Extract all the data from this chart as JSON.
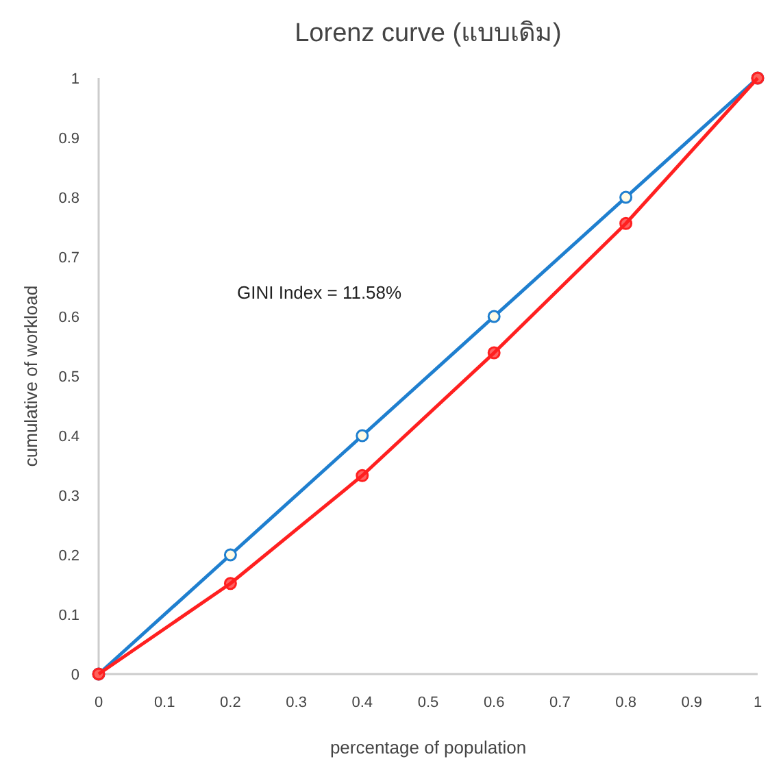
{
  "chart_data": {
    "type": "line",
    "title": "Lorenz curve (แบบเดิม)",
    "xlabel": "percentage of population",
    "ylabel": "cumulative of workload",
    "x": [
      0,
      0.2,
      0.4,
      0.6,
      0.8,
      1
    ],
    "series": [
      {
        "color": "#1f7fcf",
        "values": [
          0,
          0.2,
          0.4,
          0.6,
          0.8,
          1
        ]
      },
      {
        "color": "#ff2020",
        "values": [
          0,
          0.152,
          0.333,
          0.539,
          0.756,
          1
        ]
      }
    ],
    "xlim": [
      0,
      1
    ],
    "ylim": [
      0,
      1
    ],
    "xticks": [
      0,
      0.1,
      0.2,
      0.3,
      0.4,
      0.5,
      0.6,
      0.7,
      0.8,
      0.9,
      1
    ],
    "yticks": [
      0,
      0.1,
      0.2,
      0.3,
      0.4,
      0.5,
      0.6,
      0.7,
      0.8,
      0.9,
      1
    ],
    "annotations": [
      "GINI Index = 11.58%"
    ],
    "marker": "circle",
    "grid": false
  }
}
